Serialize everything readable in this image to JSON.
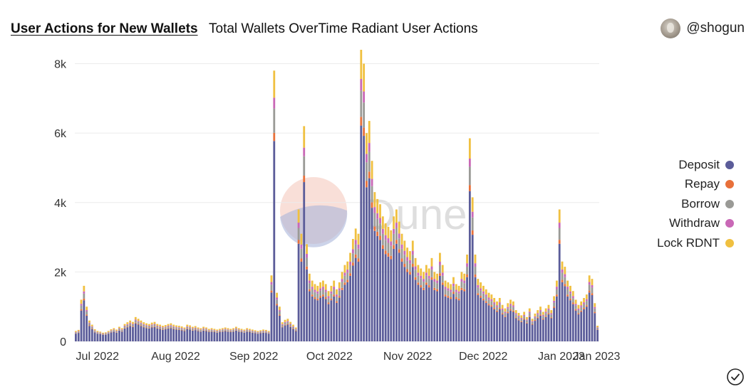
{
  "header": {
    "title": "User Actions for New Wallets",
    "subtitle": "Total Wallets OverTime Radiant User Actions",
    "author": "@shogun",
    "avatar_icon": "avatar-icon"
  },
  "watermark": "Dune",
  "status_icon": "check-circle-icon",
  "chart_data": {
    "type": "bar",
    "stacked": true,
    "title": "",
    "xlabel": "",
    "ylabel": "",
    "ylim": [
      0,
      8400
    ],
    "y_ticks": [
      0,
      2000,
      4000,
      6000,
      8000
    ],
    "y_tick_labels": [
      "0",
      "2k",
      "4k",
      "6k",
      "8k"
    ],
    "x_tick_labels": [
      "Jul 2022",
      "Aug 2022",
      "Sep 2022",
      "Oct 2022",
      "Nov 2022",
      "Dec 2022",
      "Jan 2023",
      "Jan 2023"
    ],
    "x_range": [
      "2022-06-22",
      "2023-01-16"
    ],
    "bar_interval": "daily",
    "grid": true,
    "legend_position": "right",
    "series": [
      {
        "name": "Deposit",
        "color": "#5b5c99"
      },
      {
        "name": "Repay",
        "color": "#e8703a"
      },
      {
        "name": "Borrow",
        "color": "#9a9a96"
      },
      {
        "name": "Withdraw",
        "color": "#c968b6"
      },
      {
        "name": "Lock RDNT",
        "color": "#f0c040"
      }
    ],
    "totals": [
      300,
      330,
      1200,
      1600,
      1000,
      600,
      480,
      350,
      300,
      280,
      250,
      260,
      300,
      350,
      380,
      340,
      420,
      380,
      500,
      550,
      600,
      560,
      700,
      650,
      600,
      550,
      520,
      500,
      540,
      560,
      500,
      480,
      450,
      470,
      500,
      520,
      480,
      460,
      450,
      430,
      400,
      480,
      460,
      420,
      440,
      400,
      380,
      420,
      400,
      360,
      380,
      360,
      340,
      360,
      380,
      400,
      380,
      360,
      380,
      420,
      380,
      360,
      340,
      380,
      360,
      340,
      320,
      300,
      320,
      340,
      330,
      300,
      1900,
      7800,
      1400,
      1000,
      550,
      620,
      650,
      560,
      480,
      400,
      3800,
      3100,
      6200,
      2800,
      1950,
      1750,
      1650,
      1600,
      1700,
      1750,
      1650,
      1450,
      1600,
      1750,
      1500,
      1700,
      2000,
      2200,
      2300,
      2550,
      2950,
      3250,
      3100,
      8400,
      8000,
      6000,
      6350,
      5200,
      4300,
      4100,
      3950,
      3600,
      3400,
      3300,
      3200,
      3600,
      3800,
      3450,
      3100,
      2900,
      2700,
      2600,
      2900,
      2400,
      2200,
      2100,
      2000,
      2200,
      2100,
      2400,
      2000,
      1950,
      2550,
      2200,
      1750,
      1700,
      1650,
      1850,
      1650,
      1600,
      2000,
      1950,
      2500,
      5850,
      4150,
      2500,
      1800,
      1700,
      1600,
      1500,
      1400,
      1350,
      1250,
      1150,
      1250,
      1050,
      950,
      1100,
      1200,
      1150,
      900,
      820,
      750,
      850,
      700,
      950,
      650,
      800,
      900,
      1000,
      850,
      950,
      1050,
      900,
      1300,
      1750,
      3800,
      2300,
      2150,
      1750,
      1600,
      1450,
      1200,
      1050,
      1150,
      1250,
      1350,
      1900,
      1800,
      1100,
      450
    ],
    "series_shares": [
      {
        "name": "Deposit",
        "share": 0.74
      },
      {
        "name": "Repay",
        "share": 0.03
      },
      {
        "name": "Borrow",
        "share": 0.09
      },
      {
        "name": "Withdraw",
        "share": 0.04
      },
      {
        "name": "Lock RDNT",
        "share": 0.1
      }
    ]
  }
}
